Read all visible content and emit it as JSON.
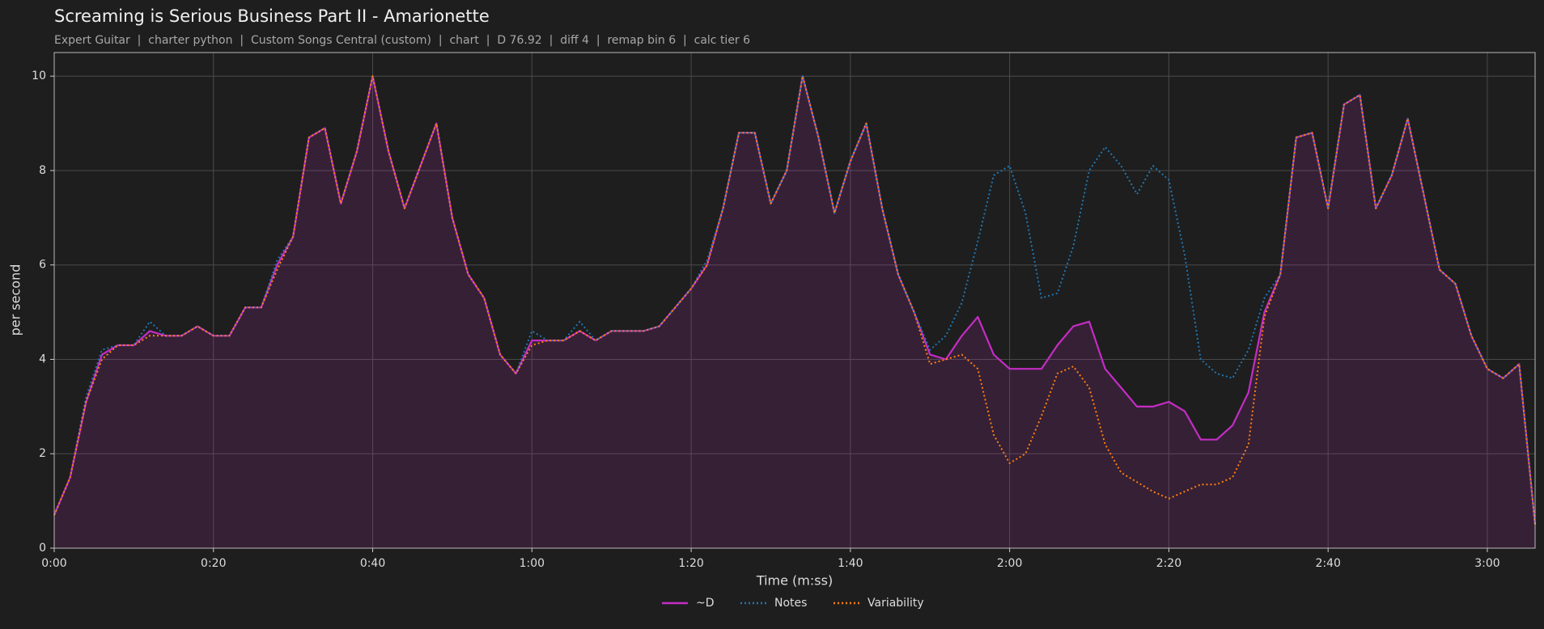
{
  "chart_data": {
    "type": "line",
    "title": "Screaming is Serious Business Part II - Amarionette",
    "subtitle": "Expert Guitar  |  charter python  |  Custom Songs Central (custom)  |  chart  |  D 76.92  |  diff 4  |  remap bin 6  |  calc tier 6",
    "x_label": "Time (m:ss)",
    "y_label": "per second",
    "xlim": [
      0,
      186
    ],
    "ylim": [
      0,
      10.5
    ],
    "xticks": [
      {
        "value": 0,
        "label": "0:00"
      },
      {
        "value": 20,
        "label": "0:20"
      },
      {
        "value": 40,
        "label": "0:40"
      },
      {
        "value": 60,
        "label": "1:00"
      },
      {
        "value": 80,
        "label": "1:20"
      },
      {
        "value": 100,
        "label": "1:40"
      },
      {
        "value": 120,
        "label": "2:00"
      },
      {
        "value": 140,
        "label": "2:20"
      },
      {
        "value": 160,
        "label": "2:40"
      },
      {
        "value": 180,
        "label": "3:00"
      }
    ],
    "yticks": [
      0,
      2,
      4,
      6,
      8,
      10
    ],
    "grid": true,
    "legend": "bottom",
    "x": [
      0,
      2,
      4,
      6,
      8,
      10,
      12,
      14,
      16,
      18,
      20,
      22,
      24,
      26,
      28,
      30,
      32,
      34,
      36,
      38,
      40,
      42,
      44,
      46,
      48,
      50,
      52,
      54,
      56,
      58,
      60,
      62,
      64,
      66,
      68,
      70,
      72,
      74,
      76,
      78,
      80,
      82,
      84,
      86,
      88,
      90,
      92,
      94,
      96,
      98,
      100,
      102,
      104,
      106,
      108,
      110,
      112,
      114,
      116,
      118,
      120,
      122,
      124,
      126,
      128,
      130,
      132,
      134,
      136,
      138,
      140,
      142,
      144,
      146,
      148,
      150,
      152,
      154,
      156,
      158,
      160,
      162,
      164,
      166,
      168,
      170,
      172,
      174,
      176,
      178,
      180,
      182,
      184,
      186
    ],
    "series": [
      {
        "name": "~D",
        "color": "#c42dc4",
        "style": "solid",
        "fill": true,
        "values": [
          0.7,
          1.5,
          3.1,
          4.1,
          4.3,
          4.3,
          4.6,
          4.5,
          4.5,
          4.7,
          4.5,
          4.5,
          5.1,
          5.1,
          6.0,
          6.6,
          8.7,
          8.9,
          7.3,
          8.4,
          10.0,
          8.4,
          7.2,
          8.1,
          9.0,
          7.0,
          5.8,
          5.3,
          4.1,
          3.7,
          4.4,
          4.4,
          4.4,
          4.6,
          4.4,
          4.6,
          4.6,
          4.6,
          4.7,
          5.1,
          5.5,
          6.0,
          7.2,
          8.8,
          8.8,
          7.3,
          8.0,
          10.0,
          8.7,
          7.1,
          8.2,
          9.0,
          7.2,
          5.8,
          5.0,
          4.1,
          4.0,
          4.5,
          4.9,
          4.1,
          3.8,
          3.8,
          3.8,
          4.3,
          4.7,
          4.8,
          3.8,
          3.4,
          3.0,
          3.0,
          3.1,
          2.9,
          2.3,
          2.3,
          2.6,
          3.3,
          5.0,
          5.8,
          8.7,
          8.8,
          7.2,
          9.4,
          9.6,
          7.2,
          7.9,
          9.1,
          7.5,
          5.9,
          5.6,
          4.5,
          3.8,
          3.6,
          3.9,
          0.5
        ]
      },
      {
        "name": "Notes",
        "color": "#1f77b4",
        "style": "dotted",
        "values": [
          0.7,
          1.5,
          3.2,
          4.2,
          4.3,
          4.3,
          4.8,
          4.5,
          4.5,
          4.7,
          4.5,
          4.5,
          5.1,
          5.1,
          6.1,
          6.6,
          8.7,
          8.9,
          7.3,
          8.4,
          10.0,
          8.4,
          7.2,
          8.1,
          9.0,
          7.0,
          5.8,
          5.3,
          4.1,
          3.7,
          4.6,
          4.4,
          4.4,
          4.8,
          4.4,
          4.6,
          4.6,
          4.6,
          4.7,
          5.1,
          5.5,
          6.1,
          7.2,
          8.8,
          8.8,
          7.3,
          8.0,
          10.0,
          8.7,
          7.1,
          8.2,
          9.0,
          7.2,
          5.8,
          5.0,
          4.2,
          4.5,
          5.2,
          6.5,
          7.9,
          8.1,
          7.1,
          5.3,
          5.4,
          6.4,
          8.0,
          8.5,
          8.1,
          7.5,
          8.1,
          7.8,
          6.2,
          4.0,
          3.7,
          3.6,
          4.2,
          5.3,
          5.8,
          8.7,
          8.8,
          7.2,
          9.4,
          9.6,
          7.2,
          7.9,
          9.1,
          7.5,
          5.9,
          5.6,
          4.5,
          3.8,
          3.6,
          3.9,
          0.5
        ]
      },
      {
        "name": "Variability",
        "color": "#ff7f0e",
        "style": "dotted",
        "values": [
          0.7,
          1.5,
          3.1,
          4.0,
          4.3,
          4.3,
          4.5,
          4.5,
          4.5,
          4.7,
          4.5,
          4.5,
          5.1,
          5.1,
          5.9,
          6.6,
          8.7,
          8.9,
          7.3,
          8.4,
          10.0,
          8.4,
          7.2,
          8.1,
          9.0,
          7.0,
          5.8,
          5.3,
          4.1,
          3.7,
          4.3,
          4.4,
          4.4,
          4.6,
          4.4,
          4.6,
          4.6,
          4.6,
          4.7,
          5.1,
          5.5,
          6.0,
          7.2,
          8.8,
          8.8,
          7.3,
          8.0,
          10.0,
          8.7,
          7.1,
          8.2,
          9.0,
          7.2,
          5.8,
          5.0,
          3.9,
          4.0,
          4.1,
          3.8,
          2.4,
          1.8,
          2.0,
          2.8,
          3.7,
          3.85,
          3.4,
          2.2,
          1.6,
          1.4,
          1.2,
          1.05,
          1.2,
          1.35,
          1.35,
          1.5,
          2.2,
          4.9,
          5.8,
          8.7,
          8.8,
          7.2,
          9.4,
          9.6,
          7.2,
          7.9,
          9.1,
          7.5,
          5.9,
          5.6,
          4.5,
          3.8,
          3.6,
          3.9,
          0.5
        ]
      }
    ]
  }
}
